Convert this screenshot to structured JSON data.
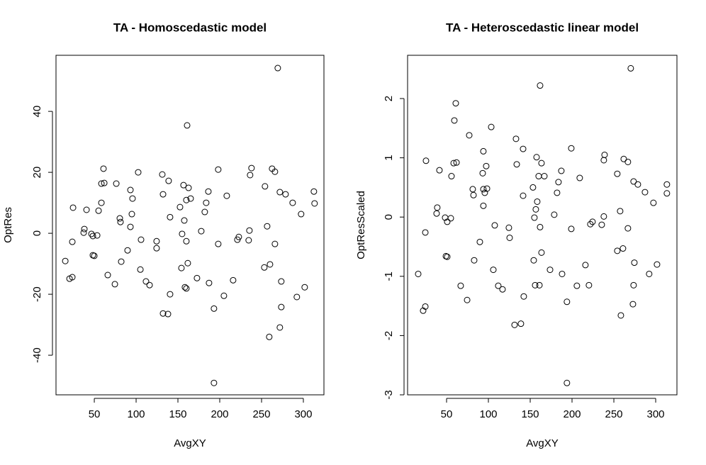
{
  "chart_data": [
    {
      "type": "scatter",
      "title": "TA - Homoscedastic model",
      "xlabel": "AvgXY",
      "ylabel": "OptRes",
      "xlim": [
        4.2,
        324.6
      ],
      "ylim": [
        -53,
        58.4
      ],
      "xticks": [
        50,
        100,
        150,
        200,
        250,
        300
      ],
      "yticks": [
        -40,
        -20,
        0,
        20,
        40
      ],
      "color": "#000000",
      "x": [
        15.3,
        20.4,
        23.7,
        23.7,
        24.6,
        37.3,
        38.1,
        40.7,
        46.6,
        48.3,
        48.3,
        50,
        53.4,
        55.1,
        58.5,
        61.0,
        58.5,
        61.9,
        66.1,
        74.6,
        76.3,
        80.5,
        81.3,
        82.2,
        89.8,
        93.2,
        93.2,
        94.9,
        95.7,
        102.5,
        105.9,
        105.1,
        111.8,
        116.1,
        124.5,
        124.5,
        131.3,
        132.2,
        132.2,
        138.1,
        138.9,
        140.6,
        140.6,
        152.5,
        154.2,
        155.0,
        156.7,
        157.6,
        158.4,
        160.1,
        160.1,
        160.1,
        161.0,
        161.8,
        162.7,
        165.2,
        172.8,
        177.9,
        182.1,
        183.8,
        186.4,
        187.2,
        193.1,
        193.1,
        198.2,
        198.2,
        205.0,
        208.4,
        216.0,
        221.1,
        222.8,
        234.6,
        235.5,
        236.3,
        238.0,
        253.3,
        254.1,
        256.7,
        259.2,
        260.1,
        262.6,
        266.0,
        266.0,
        269.4,
        271.9,
        273.6,
        273.6,
        271.9,
        278.7,
        287.2,
        292.2,
        297.3,
        301.6,
        312.6,
        313.4
      ],
      "values": [
        -9.1,
        -14.9,
        -14.4,
        -2.8,
        8.4,
        0.2,
        1.4,
        7.7,
        -0.2,
        -0.9,
        -7.2,
        -7.4,
        -0.7,
        7.4,
        10.0,
        21.2,
        16.3,
        16.5,
        -13.7,
        -16.7,
        16.3,
        4.9,
        3.7,
        -9.3,
        -5.6,
        14.2,
        2.1,
        6.3,
        11.4,
        20.0,
        -2.1,
        -11.9,
        -15.8,
        -17.0,
        -2.6,
        -4.9,
        19.3,
        12.8,
        -26.3,
        -26.5,
        17.2,
        5.3,
        -20.0,
        8.6,
        -11.4,
        -0.2,
        15.8,
        4.2,
        -17.7,
        10.9,
        -2.6,
        -18.1,
        35.4,
        -9.8,
        14.9,
        11.4,
        -14.7,
        0.7,
        7.0,
        10.0,
        13.7,
        -16.3,
        -24.7,
        -49.1,
        20.9,
        -3.5,
        -20.5,
        12.3,
        -15.4,
        -2.1,
        -1.2,
        -2.3,
        0.9,
        19.1,
        21.4,
        -11.2,
        15.4,
        2.3,
        -34.0,
        -10.2,
        21.2,
        20.2,
        -3.5,
        54.2,
        13.5,
        -15.8,
        -24.2,
        -30.9,
        12.8,
        10.0,
        -20.9,
        6.3,
        -17.7,
        13.7,
        9.8
      ]
    },
    {
      "type": "scatter",
      "title": "TA - Heteroscedastic linear model",
      "xlabel": "AvgXY",
      "ylabel": "OptResScaled",
      "xlim": [
        3.4,
        325.4
      ],
      "ylim": [
        -3,
        2.73
      ],
      "xticks": [
        50,
        100,
        150,
        200,
        250,
        300
      ],
      "yticks": [
        -3,
        -2,
        -1,
        0,
        1,
        2
      ],
      "color": "#000000",
      "x": [
        16.1,
        22.0,
        24.6,
        24.6,
        25.4,
        38.1,
        38.9,
        41.5,
        48.3,
        49.2,
        50.8,
        50.8,
        55.1,
        55.9,
        58.5,
        59.3,
        61.0,
        61.9,
        66.9,
        74.6,
        77.1,
        81.3,
        82.2,
        83.0,
        89.8,
        93.2,
        94.0,
        94.0,
        95.7,
        94.0,
        97.4,
        98.3,
        103.4,
        105.9,
        107.6,
        111.8,
        116.9,
        124.5,
        125.4,
        131.3,
        133.0,
        133.9,
        138.9,
        141.5,
        141.5,
        142.3,
        153.3,
        154.2,
        155.0,
        155.9,
        156.7,
        157.6,
        158.4,
        160.1,
        161.0,
        161.8,
        161.8,
        163.5,
        163.5,
        166.9,
        173.7,
        178.7,
        182.1,
        183.8,
        187.2,
        188.1,
        193.9,
        193.9,
        199.1,
        199.1,
        205.8,
        209.2,
        216.0,
        220.2,
        221.9,
        224.5,
        235.5,
        238.0,
        238.0,
        238.9,
        254.1,
        254.1,
        257.5,
        258.4,
        260.9,
        261.8,
        266.8,
        266.8,
        270.2,
        273.6,
        273.6,
        274.5,
        272.8,
        278.7,
        287.2,
        292.2,
        297.3,
        301.6,
        313.4,
        313.4
      ],
      "values": [
        -0.96,
        -1.58,
        -1.51,
        -0.26,
        0.95,
        0.06,
        0.16,
        0.79,
        -0.01,
        -0.66,
        -0.67,
        -0.08,
        -0.02,
        0.69,
        0.91,
        1.63,
        1.92,
        0.92,
        -1.16,
        -1.4,
        1.38,
        0.47,
        0.37,
        -0.73,
        -0.42,
        0.74,
        1.11,
        0.47,
        0.41,
        0.19,
        0.86,
        0.48,
        1.52,
        -0.89,
        -0.14,
        -1.16,
        -1.22,
        -0.18,
        -0.35,
        -1.82,
        1.32,
        0.89,
        -1.8,
        1.15,
        0.36,
        -1.34,
        0.5,
        -0.73,
        -0.01,
        -1.15,
        0.13,
        1.01,
        0.26,
        0.69,
        -1.15,
        2.22,
        -0.17,
        -0.6,
        0.91,
        0.69,
        -0.89,
        0.04,
        0.41,
        0.59,
        0.78,
        -0.96,
        -1.43,
        -2.8,
        1.16,
        -0.2,
        -1.16,
        0.66,
        -0.81,
        -1.15,
        -0.12,
        -0.08,
        -0.13,
        0.01,
        0.96,
        1.05,
        0.73,
        -0.57,
        0.1,
        -1.66,
        -0.53,
        0.98,
        0.93,
        -0.19,
        2.51,
        0.6,
        -1.15,
        -0.77,
        -1.47,
        0.55,
        0.42,
        -0.96,
        0.24,
        -0.8,
        0.55,
        0.4
      ]
    }
  ]
}
